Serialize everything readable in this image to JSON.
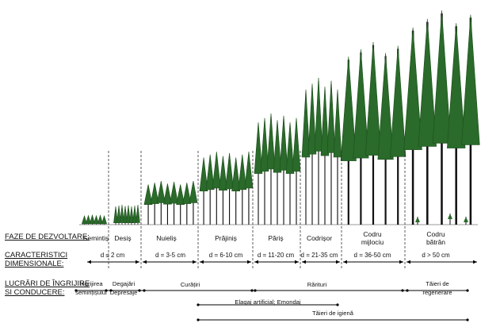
{
  "row_labels": {
    "phases": "FAZE DE DEZVOLTARE:",
    "dimensions_line1": "CARACTERISTICI",
    "dimensions_line2": "DIMENSIONALE:",
    "works_line1": "LUCRĂRI DE ÎNGRIJIRE",
    "works_line2": "SI CONDUCERE:"
  },
  "stages": [
    {
      "name": "Semintiș",
      "name2": "",
      "dim": "",
      "tree_h": 12,
      "trees": 6
    },
    {
      "name": "Desiș",
      "name2": "",
      "dim": "d ≤ 2 cm",
      "tree_h": 25,
      "trees": 8
    },
    {
      "name": "Nuieliș",
      "name2": "",
      "dim": "d = 3-5 cm",
      "tree_h": 55,
      "trees": 8
    },
    {
      "name": "Prăjiniș",
      "name2": "",
      "dim": "d = 6-10 cm",
      "tree_h": 92,
      "trees": 8
    },
    {
      "name": "Păriș",
      "name2": "",
      "dim": "d = 11-20 cm",
      "tree_h": 140,
      "trees": 7
    },
    {
      "name": "Codrișor",
      "name2": "",
      "dim": "d = 21-35 cm",
      "tree_h": 185,
      "trees": 6
    },
    {
      "name": "Codru",
      "name2": "mijlociu",
      "dim": "d = 36-50 cm",
      "tree_h": 230,
      "trees": 5
    },
    {
      "name": "Codru",
      "name2": "bătrân",
      "dim": "d > 50 cm",
      "tree_h": 270,
      "trees": 5
    }
  ],
  "works": {
    "ingrijirea1": "Îngrijirea",
    "ingrijirea2": "semințișului",
    "degajari": "Degajări",
    "depresaje": "Depresaje",
    "curatiri": "Curățiri",
    "rarituri": "Rărituri",
    "taieri_regenerare1": "Tăieri de",
    "taieri_regenerare2": "regenerare",
    "elagaj": "Elagaj artificial; Emondaj",
    "taieri_igiena": "Tăieri de igienă"
  },
  "colors": {
    "tree": "#2a6a2a",
    "tree_dark": "#1d4f1d",
    "trunk": "#111111"
  }
}
